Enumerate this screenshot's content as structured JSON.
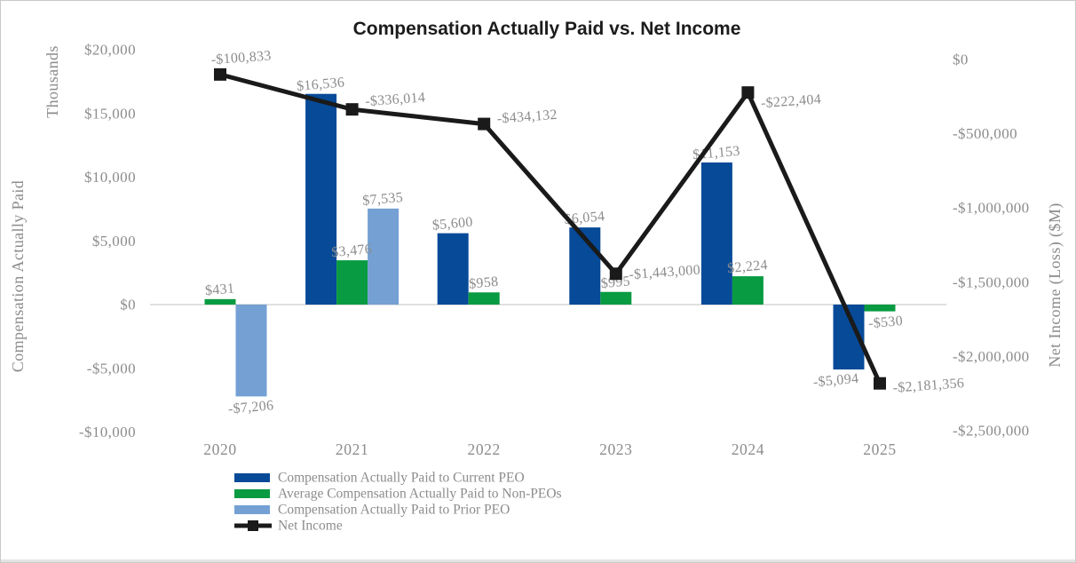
{
  "chart_data": {
    "type": "combo-bar-line",
    "title": "Compensation Actually Paid vs. Net Income",
    "categories": [
      "2020",
      "2021",
      "2022",
      "2023",
      "2024",
      "2025"
    ],
    "left_axis": {
      "title": "Compensation Actually Paid",
      "unit": "Thousands",
      "tick_labels": [
        "$20,000",
        "$15,000",
        "$10,000",
        "$5,000",
        "$0",
        "-$5,000",
        "-$10,000"
      ],
      "tick_values": [
        20000,
        15000,
        10000,
        5000,
        0,
        -5000,
        -10000
      ],
      "range": [
        -10000,
        20000
      ]
    },
    "right_axis": {
      "title": "Net Income (Loss) ($M)",
      "tick_labels": [
        "$0",
        "-$500,000",
        "-$1,000,000",
        "-$1,500,000",
        "-$2,000,000",
        "-$2,500,000"
      ],
      "tick_values": [
        0,
        -500000,
        -1000000,
        -1500000,
        -2000000,
        -2500000
      ],
      "range": [
        -2500000,
        0
      ]
    },
    "series": [
      {
        "name": "Compensation Actually Paid to Current PEO",
        "type": "bar",
        "axis": "left",
        "color": "#064A98",
        "values": [
          null,
          16536,
          5600,
          6054,
          11153,
          -5094
        ],
        "labels": [
          null,
          "$16,536",
          "$5,600",
          "$6,054",
          "$11,153",
          "-$5,094"
        ]
      },
      {
        "name": "Average Compensation Actually Paid to Non-PEOs",
        "type": "bar",
        "axis": "left",
        "color": "#089B41",
        "values": [
          431,
          3476,
          958,
          995,
          2224,
          -530
        ],
        "labels": [
          "$431",
          "$3,476",
          "$958",
          "$995",
          "$2,224",
          "-$530"
        ]
      },
      {
        "name": "Compensation Actually Paid to Prior PEO",
        "type": "bar",
        "axis": "left",
        "color": "#74A0D4",
        "values": [
          -7206,
          7535,
          null,
          null,
          null,
          null
        ],
        "labels": [
          "-$7,206",
          "$7,535",
          null,
          null,
          null,
          null
        ]
      },
      {
        "name": "Net Income",
        "type": "line",
        "axis": "right",
        "color": "#1A1A1A",
        "values": [
          -100833,
          -336014,
          -434132,
          -1443000,
          -222404,
          -2181356
        ],
        "labels": [
          "-$100,833",
          "-$336,014",
          "-$434,132",
          "-$1,443,000",
          "-$222,404",
          "-$2,181,356"
        ]
      }
    ],
    "legend": {
      "position": "bottom-left",
      "items": [
        "Compensation Actually Paid to Current PEO",
        "Average Compensation Actually Paid to Non-PEOs",
        "Compensation Actually Paid to Prior PEO",
        "Net Income"
      ]
    },
    "styles": {
      "label_color": "#8C8C8C",
      "title_color": "#1C1C1C",
      "gridline_color": "#E0E0E0",
      "background": "#FFFFFF",
      "grid": "zero-line-only",
      "line_marker": "square"
    }
  }
}
